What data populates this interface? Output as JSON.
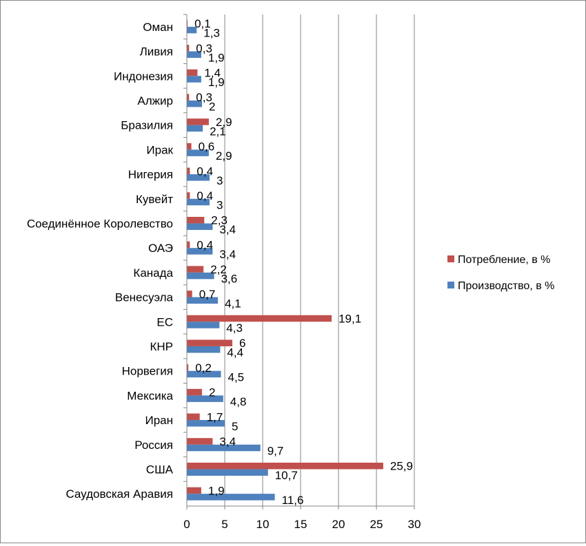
{
  "chart_data": {
    "type": "bar",
    "orientation": "horizontal",
    "categories": [
      "Саудовская Аравия",
      "США",
      "Россия",
      "Иран",
      "Мексика",
      "Норвегия",
      "КНР",
      "ЕС",
      "Венесуэла",
      "Канада",
      "ОАЭ",
      "Соединённое Королевство",
      "Кувейт",
      "Нигерия",
      "Ирак",
      "Бразилия",
      "Алжир",
      "Индонезия",
      "Ливия",
      "Оман"
    ],
    "series": [
      {
        "name": "Производство, в %",
        "color": "#4F81BD",
        "values": [
          11.6,
          10.7,
          9.7,
          5,
          4.8,
          4.5,
          4.4,
          4.3,
          4.1,
          3.6,
          3.4,
          3.4,
          3,
          3,
          2.9,
          2.1,
          2,
          1.9,
          1.9,
          1.3
        ],
        "labels": [
          "11,6",
          "10,7",
          "9,7",
          "5",
          "4,8",
          "4,5",
          "4,4",
          "4,3",
          "4,1",
          "3,6",
          "3,4",
          "3,4",
          "3",
          "3",
          "2,9",
          "2,1",
          "2",
          "1,9",
          "1,9",
          "1,3"
        ]
      },
      {
        "name": "Потребление, в  %",
        "color": "#C0504D",
        "values": [
          1.9,
          25.9,
          3.4,
          1.7,
          2,
          0.2,
          6,
          19.1,
          0.7,
          2.2,
          0.4,
          2.3,
          0.4,
          0.4,
          0.6,
          2.9,
          0.3,
          1.4,
          0.3,
          0.1
        ],
        "labels": [
          "1,9",
          "25,9",
          "3,4",
          "1,7",
          "2",
          "0,2",
          "6",
          "19,1",
          "0,7",
          "2,2",
          "0,4",
          "2,3",
          "0,4",
          "0,4",
          "0,6",
          "2,9",
          "0,3",
          "1,4",
          "0,3",
          "0,1"
        ]
      }
    ],
    "xlim": [
      0,
      30
    ],
    "x_ticks": [
      "0",
      "5",
      "10",
      "15",
      "20",
      "25",
      "30"
    ],
    "grid": true,
    "legend_position": "right",
    "legend_order": [
      "Потребление, в  %",
      "Производство, в %"
    ]
  }
}
